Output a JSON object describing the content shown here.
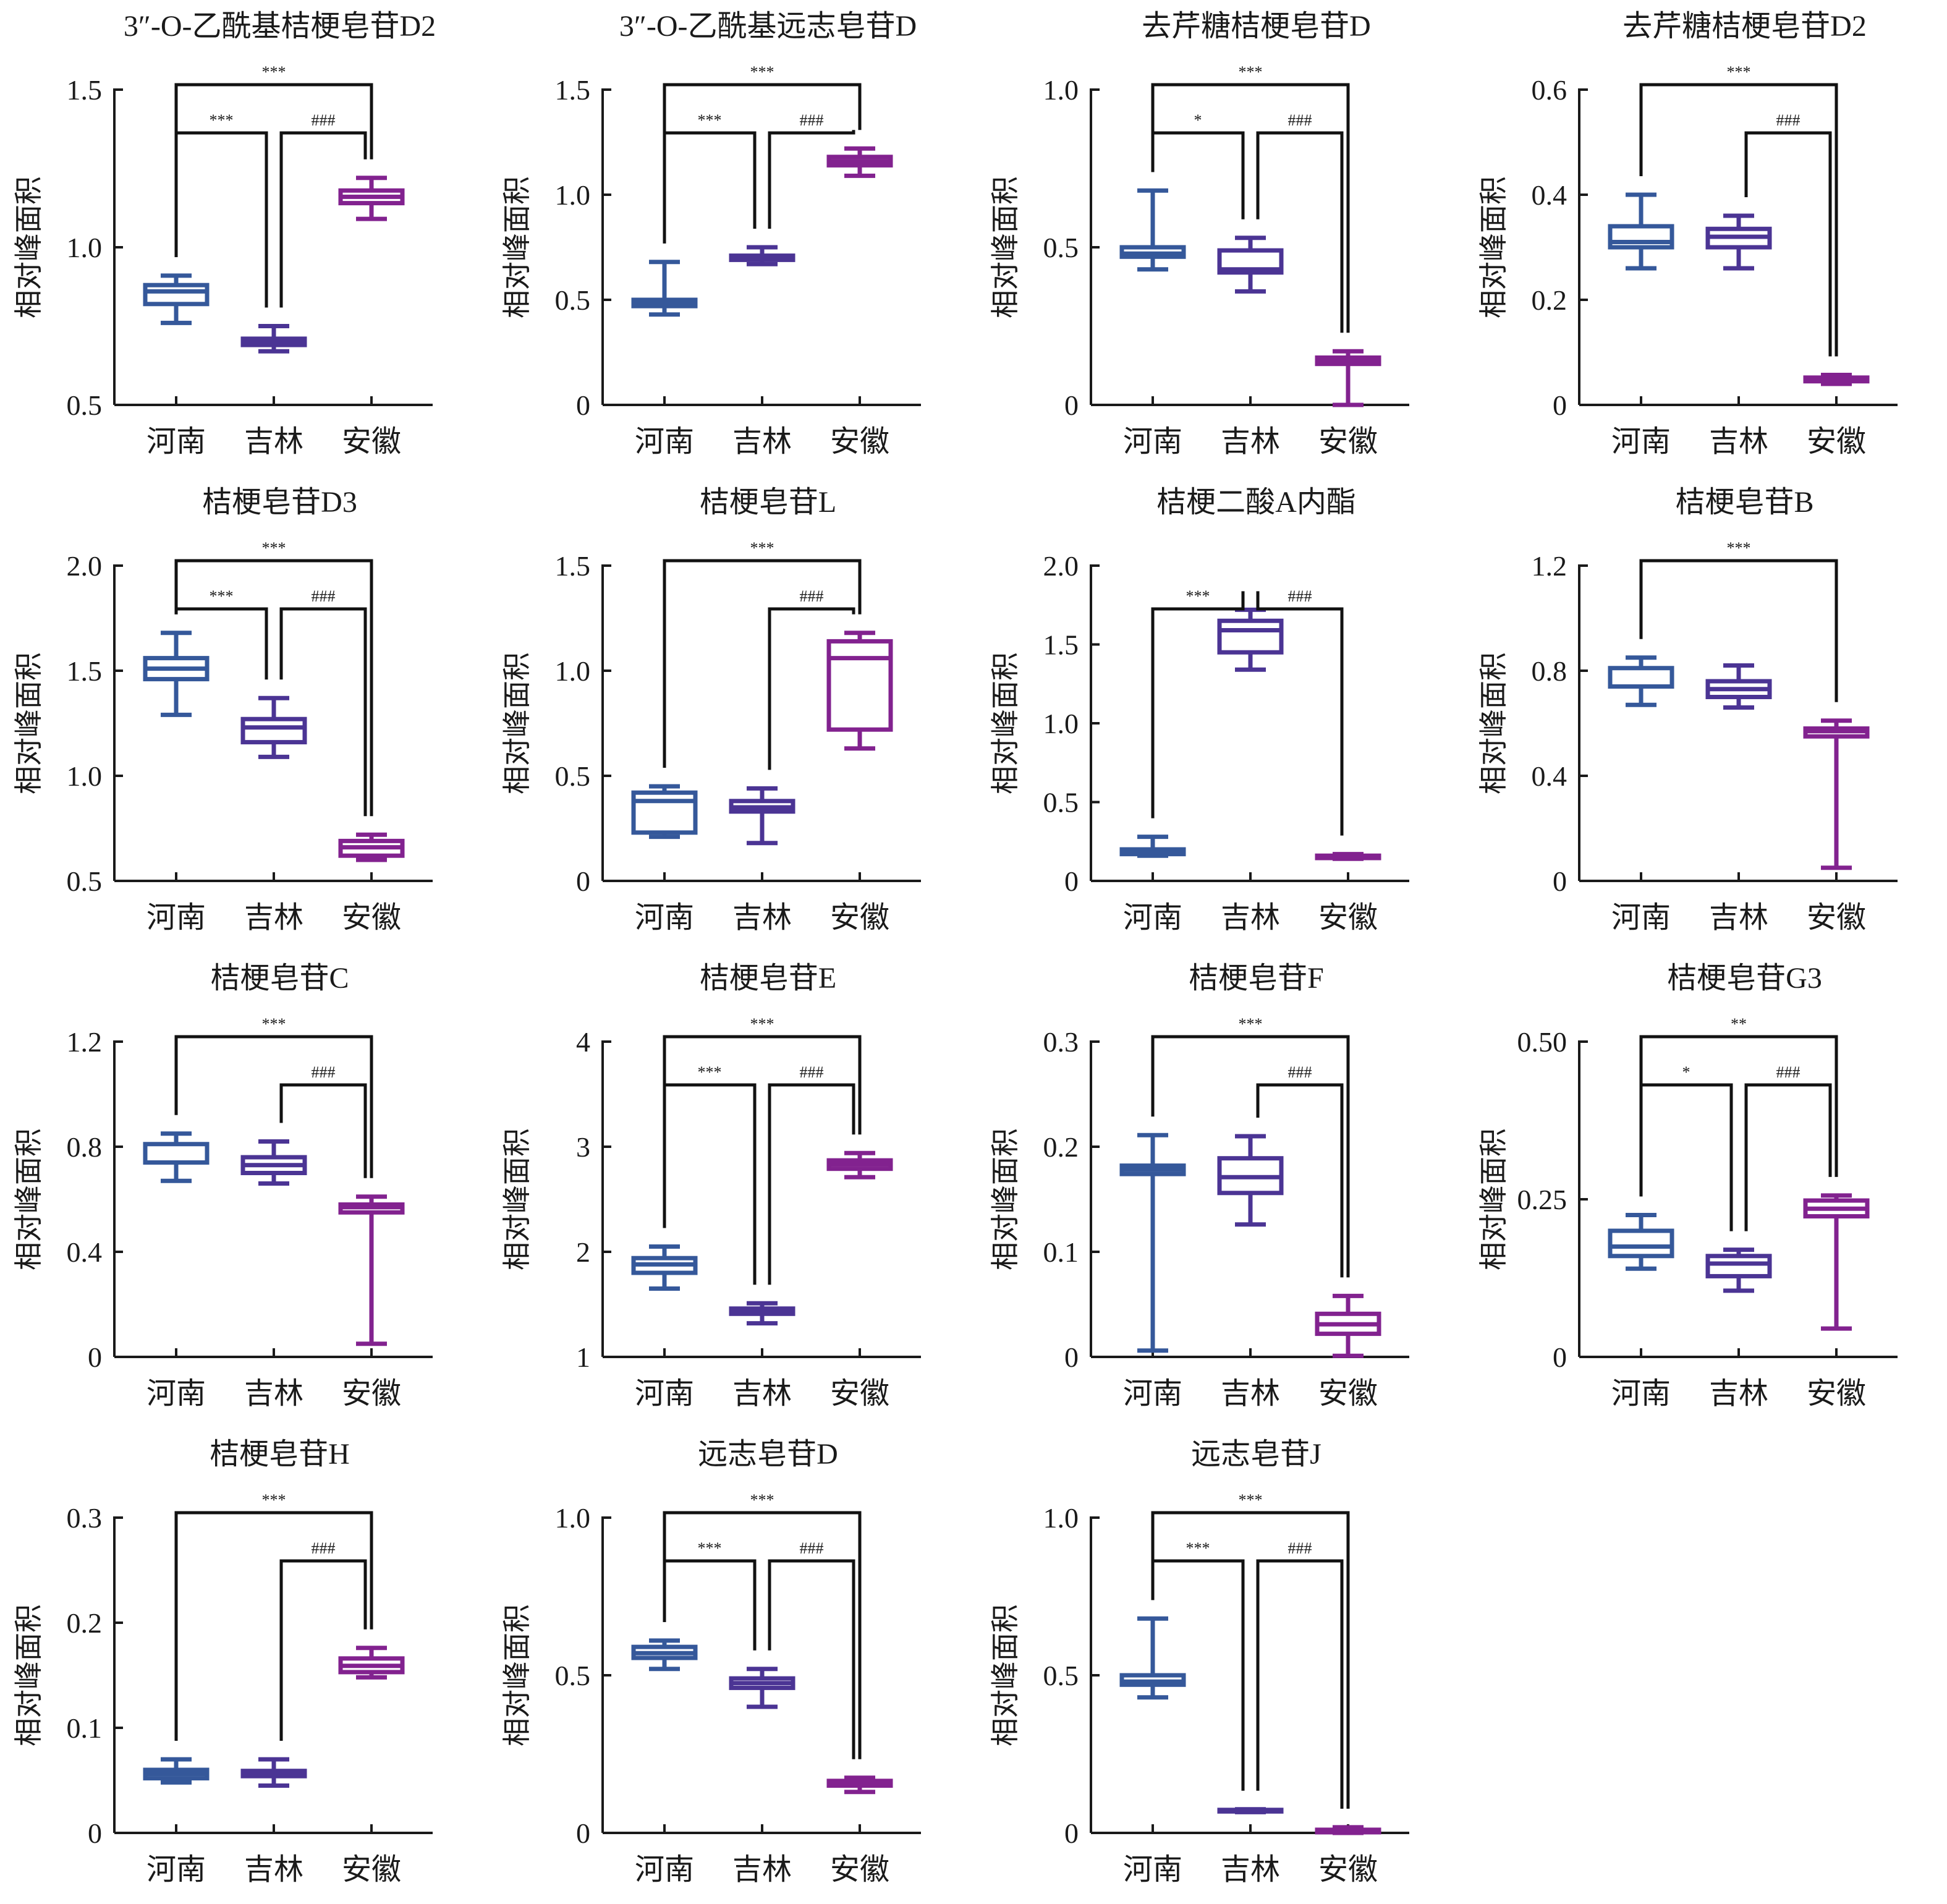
{
  "figure": {
    "ylabel": "相对峰面积",
    "groups": [
      "河南",
      "吉林",
      "安徽"
    ],
    "group_colors": {
      "河南": "#35589A",
      "吉林": "#4B3494",
      "安徽": "#82228F"
    }
  },
  "chart_data": [
    {
      "type": "box",
      "title": "3″-O-乙酰基桔梗皂苷D2",
      "ylabel": "相对峰面积",
      "categories": [
        "河南",
        "吉林",
        "安徽"
      ],
      "ylim": [
        0.5,
        1.5
      ],
      "yticks": [
        "0.5",
        "1.0",
        "1.5"
      ],
      "boxes": [
        {
          "group": "河南",
          "min": 0.76,
          "q1": 0.82,
          "median": 0.86,
          "q3": 0.88,
          "max": 0.91
        },
        {
          "group": "吉林",
          "min": 0.67,
          "q1": 0.69,
          "median": 0.7,
          "q3": 0.71,
          "max": 0.75
        },
        {
          "group": "安徽",
          "min": 1.09,
          "q1": 1.14,
          "median": 1.16,
          "q3": 1.18,
          "max": 1.22
        }
      ],
      "significance": [
        {
          "from": "河南",
          "to": "安徽",
          "label": "***",
          "level": 2
        },
        {
          "from": "河南",
          "to": "吉林",
          "label": "***",
          "level": 1
        },
        {
          "from": "吉林",
          "to": "安徽",
          "label": "###",
          "level": 1
        }
      ]
    },
    {
      "type": "box",
      "title": "3″-O-乙酰基远志皂苷D",
      "ylabel": "相对峰面积",
      "categories": [
        "河南",
        "吉林",
        "安徽"
      ],
      "ylim": [
        0,
        1.5
      ],
      "yticks": [
        "0",
        "0.5",
        "1.0",
        "1.5"
      ],
      "boxes": [
        {
          "group": "河南",
          "min": 0.43,
          "q1": 0.47,
          "median": 0.48,
          "q3": 0.5,
          "max": 0.68
        },
        {
          "group": "吉林",
          "min": 0.67,
          "q1": 0.69,
          "median": 0.7,
          "q3": 0.71,
          "max": 0.75
        },
        {
          "group": "安徽",
          "min": 1.09,
          "q1": 1.14,
          "median": 1.16,
          "q3": 1.18,
          "max": 1.22
        }
      ],
      "significance": [
        {
          "from": "河南",
          "to": "安徽",
          "label": "***",
          "level": 2
        },
        {
          "from": "河南",
          "to": "吉林",
          "label": "***",
          "level": 1
        },
        {
          "from": "吉林",
          "to": "安徽",
          "label": "###",
          "level": 1
        }
      ]
    },
    {
      "type": "box",
      "title": "去芹糖桔梗皂苷D",
      "ylabel": "相对峰面积",
      "categories": [
        "河南",
        "吉林",
        "安徽"
      ],
      "ylim": [
        0,
        1.0
      ],
      "yticks": [
        "0",
        "0.5",
        "1.0"
      ],
      "boxes": [
        {
          "group": "河南",
          "min": 0.43,
          "q1": 0.47,
          "median": 0.48,
          "q3": 0.5,
          "max": 0.68
        },
        {
          "group": "吉林",
          "min": 0.36,
          "q1": 0.42,
          "median": 0.43,
          "q3": 0.49,
          "max": 0.53
        },
        {
          "group": "安徽",
          "min": 0.0,
          "q1": 0.13,
          "median": 0.14,
          "q3": 0.15,
          "max": 0.17
        }
      ],
      "significance": [
        {
          "from": "河南",
          "to": "安徽",
          "label": "***",
          "level": 2
        },
        {
          "from": "河南",
          "to": "吉林",
          "label": "*",
          "level": 1
        },
        {
          "from": "吉林",
          "to": "安徽",
          "label": "###",
          "level": 1
        }
      ]
    },
    {
      "type": "box",
      "title": "去芹糖桔梗皂苷D2",
      "ylabel": "相对峰面积",
      "categories": [
        "河南",
        "吉林",
        "安徽"
      ],
      "ylim": [
        0,
        0.6
      ],
      "yticks": [
        "0",
        "0.2",
        "0.4",
        "0.6"
      ],
      "boxes": [
        {
          "group": "河南",
          "min": 0.26,
          "q1": 0.3,
          "median": 0.31,
          "q3": 0.34,
          "max": 0.4
        },
        {
          "group": "吉林",
          "min": 0.26,
          "q1": 0.3,
          "median": 0.32,
          "q3": 0.335,
          "max": 0.36
        },
        {
          "group": "安徽",
          "min": 0.04,
          "q1": 0.045,
          "median": 0.048,
          "q3": 0.052,
          "max": 0.057
        }
      ],
      "significance": [
        {
          "from": "河南",
          "to": "安徽",
          "label": "***",
          "level": 2
        },
        {
          "from": "吉林",
          "to": "安徽",
          "label": "###",
          "level": 1
        }
      ]
    },
    {
      "type": "box",
      "title": "桔梗皂苷D3",
      "ylabel": "相对峰面积",
      "categories": [
        "河南",
        "吉林",
        "安徽"
      ],
      "ylim": [
        0.5,
        2.0
      ],
      "yticks": [
        "0.5",
        "1.0",
        "1.5",
        "2.0"
      ],
      "boxes": [
        {
          "group": "河南",
          "min": 1.29,
          "q1": 1.46,
          "median": 1.51,
          "q3": 1.56,
          "max": 1.68
        },
        {
          "group": "吉林",
          "min": 1.09,
          "q1": 1.16,
          "median": 1.23,
          "q3": 1.27,
          "max": 1.37
        },
        {
          "group": "安徽",
          "min": 0.6,
          "q1": 0.62,
          "median": 0.66,
          "q3": 0.69,
          "max": 0.72
        }
      ],
      "significance": [
        {
          "from": "河南",
          "to": "安徽",
          "label": "***",
          "level": 2
        },
        {
          "from": "河南",
          "to": "吉林",
          "label": "***",
          "level": 1
        },
        {
          "from": "吉林",
          "to": "安徽",
          "label": "###",
          "level": 1
        }
      ]
    },
    {
      "type": "box",
      "title": "桔梗皂苷L",
      "ylabel": "相对峰面积",
      "categories": [
        "河南",
        "吉林",
        "安徽"
      ],
      "ylim": [
        0,
        1.5
      ],
      "yticks": [
        "0",
        "0.5",
        "1.0",
        "1.5"
      ],
      "boxes": [
        {
          "group": "河南",
          "min": 0.21,
          "q1": 0.23,
          "median": 0.38,
          "q3": 0.42,
          "max": 0.45
        },
        {
          "group": "吉林",
          "min": 0.18,
          "q1": 0.33,
          "median": 0.35,
          "q3": 0.38,
          "max": 0.44
        },
        {
          "group": "安徽",
          "min": 0.63,
          "q1": 0.72,
          "median": 1.06,
          "q3": 1.14,
          "max": 1.18
        }
      ],
      "significance": [
        {
          "from": "河南",
          "to": "安徽",
          "label": "***",
          "level": 2
        },
        {
          "from": "吉林",
          "to": "安徽",
          "label": "###",
          "level": 1
        }
      ]
    },
    {
      "type": "box",
      "title": "桔梗二酸A内酯",
      "ylabel": "相对峰面积",
      "categories": [
        "河南",
        "吉林",
        "安徽"
      ],
      "ylim": [
        0,
        2.0
      ],
      "yticks": [
        "0",
        "0.5",
        "1.0",
        "1.5",
        "2.0"
      ],
      "boxes": [
        {
          "group": "河南",
          "min": 0.16,
          "q1": 0.17,
          "median": 0.18,
          "q3": 0.2,
          "max": 0.28
        },
        {
          "group": "吉林",
          "min": 1.34,
          "q1": 1.45,
          "median": 1.59,
          "q3": 1.65,
          "max": 1.72
        },
        {
          "group": "安徽",
          "min": 0.14,
          "q1": 0.145,
          "median": 0.15,
          "q3": 0.16,
          "max": 0.17
        }
      ],
      "significance": [
        {
          "from": "河南",
          "to": "吉林",
          "label": "***",
          "level": 1
        },
        {
          "from": "吉林",
          "to": "安徽",
          "label": "###",
          "level": 1
        }
      ]
    },
    {
      "type": "box",
      "title": "桔梗皂苷B",
      "ylabel": "相对峰面积",
      "categories": [
        "河南",
        "吉林",
        "安徽"
      ],
      "ylim": [
        0,
        1.2
      ],
      "yticks": [
        "0",
        "0.4",
        "0.8",
        "1.2"
      ],
      "boxes": [
        {
          "group": "河南",
          "min": 0.67,
          "q1": 0.74,
          "median": 0.74,
          "q3": 0.81,
          "max": 0.85
        },
        {
          "group": "吉林",
          "min": 0.66,
          "q1": 0.7,
          "median": 0.73,
          "q3": 0.76,
          "max": 0.82
        },
        {
          "group": "安徽",
          "min": 0.05,
          "q1": 0.55,
          "median": 0.57,
          "q3": 0.58,
          "max": 0.61
        }
      ],
      "significance": [
        {
          "from": "河南",
          "to": "安徽",
          "label": "***",
          "level": 2
        }
      ]
    },
    {
      "type": "box",
      "title": "桔梗皂苷C",
      "ylabel": "相对峰面积",
      "categories": [
        "河南",
        "吉林",
        "安徽"
      ],
      "ylim": [
        0,
        1.2
      ],
      "yticks": [
        "0",
        "0.4",
        "0.8",
        "1.2"
      ],
      "boxes": [
        {
          "group": "河南",
          "min": 0.67,
          "q1": 0.74,
          "median": 0.74,
          "q3": 0.81,
          "max": 0.85
        },
        {
          "group": "吉林",
          "min": 0.66,
          "q1": 0.7,
          "median": 0.73,
          "q3": 0.76,
          "max": 0.82
        },
        {
          "group": "安徽",
          "min": 0.05,
          "q1": 0.55,
          "median": 0.57,
          "q3": 0.58,
          "max": 0.61
        }
      ],
      "significance": [
        {
          "from": "河南",
          "to": "安徽",
          "label": "***",
          "level": 2
        },
        {
          "from": "吉林",
          "to": "安徽",
          "label": "###",
          "level": 1
        }
      ]
    },
    {
      "type": "box",
      "title": "桔梗皂苷E",
      "ylabel": "相对峰面积",
      "categories": [
        "河南",
        "吉林",
        "安徽"
      ],
      "ylim": [
        1,
        4
      ],
      "yticks": [
        "1",
        "2",
        "3",
        "4"
      ],
      "boxes": [
        {
          "group": "河南",
          "min": 1.65,
          "q1": 1.8,
          "median": 1.88,
          "q3": 1.94,
          "max": 2.05
        },
        {
          "group": "吉林",
          "min": 1.32,
          "q1": 1.41,
          "median": 1.43,
          "q3": 1.46,
          "max": 1.51
        },
        {
          "group": "安徽",
          "min": 2.71,
          "q1": 2.79,
          "median": 2.83,
          "q3": 2.87,
          "max": 2.94
        }
      ],
      "significance": [
        {
          "from": "河南",
          "to": "安徽",
          "label": "***",
          "level": 2
        },
        {
          "from": "河南",
          "to": "吉林",
          "label": "***",
          "level": 1
        },
        {
          "from": "吉林",
          "to": "安徽",
          "label": "###",
          "level": 1
        }
      ]
    },
    {
      "type": "box",
      "title": "桔梗皂苷F",
      "ylabel": "相对峰面积",
      "categories": [
        "河南",
        "吉林",
        "安徽"
      ],
      "ylim": [
        0,
        0.3
      ],
      "yticks": [
        "0",
        "0.1",
        "0.2",
        "0.3"
      ],
      "boxes": [
        {
          "group": "河南",
          "min": 0.006,
          "q1": 0.174,
          "median": 0.178,
          "q3": 0.182,
          "max": 0.211
        },
        {
          "group": "吉林",
          "min": 0.126,
          "q1": 0.156,
          "median": 0.171,
          "q3": 0.189,
          "max": 0.21
        },
        {
          "group": "安徽",
          "min": 0.001,
          "q1": 0.022,
          "median": 0.031,
          "q3": 0.041,
          "max": 0.058
        }
      ],
      "significance": [
        {
          "from": "河南",
          "to": "安徽",
          "label": "***",
          "level": 2
        },
        {
          "from": "吉林",
          "to": "安徽",
          "label": "###",
          "level": 1
        }
      ]
    },
    {
      "type": "box",
      "title": "桔梗皂苷G3",
      "ylabel": "相对峰面积",
      "categories": [
        "河南",
        "吉林",
        "安徽"
      ],
      "ylim": [
        0,
        0.5
      ],
      "yticks": [
        "0",
        "0.25",
        "0.50"
      ],
      "boxes": [
        {
          "group": "河南",
          "min": 0.14,
          "q1": 0.16,
          "median": 0.175,
          "q3": 0.2,
          "max": 0.225
        },
        {
          "group": "吉林",
          "min": 0.105,
          "q1": 0.128,
          "median": 0.148,
          "q3": 0.16,
          "max": 0.17
        },
        {
          "group": "安徽",
          "min": 0.045,
          "q1": 0.223,
          "median": 0.235,
          "q3": 0.248,
          "max": 0.256
        }
      ],
      "significance": [
        {
          "from": "河南",
          "to": "安徽",
          "label": "**",
          "level": 2
        },
        {
          "from": "河南",
          "to": "吉林",
          "label": "*",
          "level": 1
        },
        {
          "from": "吉林",
          "to": "安徽",
          "label": "###",
          "level": 1
        }
      ]
    },
    {
      "type": "box",
      "title": "桔梗皂苷H",
      "ylabel": "相对峰面积",
      "categories": [
        "河南",
        "吉林",
        "安徽"
      ],
      "ylim": [
        0,
        0.3
      ],
      "yticks": [
        "0",
        "0.1",
        "0.2",
        "0.3"
      ],
      "boxes": [
        {
          "group": "河南",
          "min": 0.048,
          "q1": 0.052,
          "median": 0.056,
          "q3": 0.06,
          "max": 0.07
        },
        {
          "group": "吉林",
          "min": 0.045,
          "q1": 0.054,
          "median": 0.056,
          "q3": 0.059,
          "max": 0.07
        },
        {
          "group": "安徽",
          "min": 0.148,
          "q1": 0.153,
          "median": 0.159,
          "q3": 0.166,
          "max": 0.176
        }
      ],
      "significance": [
        {
          "from": "河南",
          "to": "安徽",
          "label": "***",
          "level": 2
        },
        {
          "from": "吉林",
          "to": "安徽",
          "label": "###",
          "level": 1
        }
      ]
    },
    {
      "type": "box",
      "title": "远志皂苷D",
      "ylabel": "相对峰面积",
      "categories": [
        "河南",
        "吉林",
        "安徽"
      ],
      "ylim": [
        0,
        1.0
      ],
      "yticks": [
        "0",
        "0.5",
        "1.0"
      ],
      "boxes": [
        {
          "group": "河南",
          "min": 0.52,
          "q1": 0.555,
          "median": 0.57,
          "q3": 0.59,
          "max": 0.61
        },
        {
          "group": "吉林",
          "min": 0.4,
          "q1": 0.46,
          "median": 0.475,
          "q3": 0.49,
          "max": 0.52
        },
        {
          "group": "安徽",
          "min": 0.13,
          "q1": 0.15,
          "median": 0.155,
          "q3": 0.165,
          "max": 0.175
        }
      ],
      "significance": [
        {
          "from": "河南",
          "to": "安徽",
          "label": "***",
          "level": 2
        },
        {
          "from": "河南",
          "to": "吉林",
          "label": "***",
          "level": 1
        },
        {
          "from": "吉林",
          "to": "安徽",
          "label": "###",
          "level": 1
        }
      ]
    },
    {
      "type": "box",
      "title": "远志皂苷J",
      "ylabel": "相对峰面积",
      "categories": [
        "河南",
        "吉林",
        "安徽"
      ],
      "ylim": [
        0,
        1.0
      ],
      "yticks": [
        "0",
        "0.5",
        "1.0"
      ],
      "boxes": [
        {
          "group": "河南",
          "min": 0.43,
          "q1": 0.47,
          "median": 0.48,
          "q3": 0.5,
          "max": 0.68
        },
        {
          "group": "吉林",
          "min": 0.066,
          "q1": 0.068,
          "median": 0.07,
          "q3": 0.073,
          "max": 0.075
        },
        {
          "group": "安徽",
          "min": 0.0,
          "q1": 0.002,
          "median": 0.005,
          "q3": 0.01,
          "max": 0.018
        }
      ],
      "significance": [
        {
          "from": "河南",
          "to": "安徽",
          "label": "***",
          "level": 2
        },
        {
          "from": "河南",
          "to": "吉林",
          "label": "***",
          "level": 1
        },
        {
          "from": "吉林",
          "to": "安徽",
          "label": "###",
          "level": 1
        }
      ]
    }
  ]
}
